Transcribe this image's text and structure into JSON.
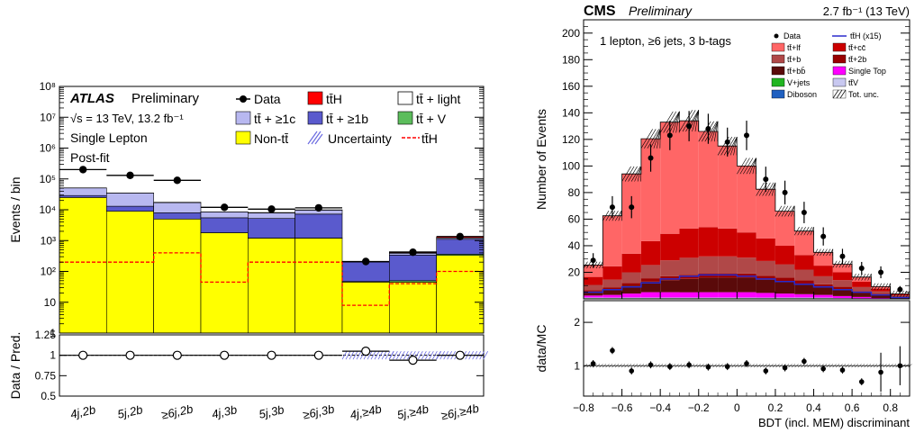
{
  "chart_data": [
    {
      "type": "bar",
      "subtype": "stacked-histogram-log",
      "ylabel": "Events / bin",
      "ratio_ylabel": "Data / Pred.",
      "ylim": [
        1,
        100000000
      ],
      "ratio_ylim": [
        0.5,
        1.25
      ],
      "y_tick_labels": [
        "1",
        "10",
        "10²",
        "10³",
        "10⁴",
        "10⁵",
        "10⁶",
        "10⁷",
        "10⁸"
      ],
      "ratio_tick_labels": [
        "1.25",
        "1",
        "0.75",
        "0.5"
      ],
      "categories": [
        "4j,2b",
        "5j,2b",
        "≥6j,2b",
        "4j,3b",
        "5j,3b",
        "≥6j,3b",
        "4j,≥4b",
        "5j,≥4b",
        "≥6j,≥4b"
      ],
      "text": {
        "experiment": "ATLAS",
        "status": "Preliminary",
        "energy": "√s = 13 TeV, 13.2 fb⁻¹",
        "channel": "Single Lepton",
        "fit": "Post-fit"
      },
      "legend": [
        "Data",
        "tt̄H",
        "tt̄ + light",
        "tt̄ + ≥1c",
        "tt̄ + ≥1b",
        "tt̄ + V",
        "Non-tt̄",
        "Uncertainty",
        "tt̄H"
      ],
      "series": [
        {
          "name": "Non-tt̄",
          "color": "#ffff00",
          "values": [
            25000,
            9000,
            5000,
            1800,
            1200,
            1200,
            45,
            45,
            330
          ]
        },
        {
          "name": "tt̄ + V",
          "color": "#5cbd5c",
          "values": [
            10,
            10,
            15,
            10,
            10,
            15,
            2,
            5,
            30
          ]
        },
        {
          "name": "tt̄ + ≥1b",
          "color": "#5a5acd",
          "values": [
            4000,
            4000,
            3000,
            3700,
            4000,
            6000,
            155,
            290,
            740
          ]
        },
        {
          "name": "tt̄ + ≥1c",
          "color": "#b8b8f0",
          "values": [
            22000,
            22000,
            9000,
            3000,
            2700,
            2500,
            1,
            50,
            120
          ]
        },
        {
          "name": "tt̄ + light",
          "color": "#ffffff",
          "values": [
            0,
            0,
            0,
            0,
            0,
            0,
            0,
            5,
            2
          ]
        },
        {
          "name": "tt̄H",
          "color": "#ff0000",
          "values": [
            200,
            200,
            400,
            45,
            200,
            200,
            8,
            40,
            100
          ]
        }
      ],
      "data": [
        200000,
        130000,
        90000,
        12000,
        10500,
        11500,
        210,
        420,
        1350
      ],
      "ratio": [
        1.0,
        1.0,
        1.0,
        1.0,
        1.0,
        1.0,
        1.05,
        0.94,
        1.0
      ],
      "tth_overlay": [
        200,
        200,
        400,
        45,
        200,
        200,
        8,
        40,
        100
      ]
    },
    {
      "type": "bar",
      "subtype": "stacked-histogram",
      "xlabel": "BDT (incl. MEM) discriminant",
      "ylabel": "Number of Events",
      "ratio_ylabel": "data/MC",
      "xlim": [
        -0.8,
        0.9
      ],
      "ylim": [
        0,
        210
      ],
      "ratio_ylim": [
        0.3,
        2.5
      ],
      "x_ticks": [
        -0.8,
        -0.6,
        -0.4,
        -0.2,
        0,
        0.2,
        0.4,
        0.6,
        0.8
      ],
      "x_tick_labels": [
        "−0.8",
        "−0.6",
        "−0.4",
        "−0.2",
        "0",
        "0.2",
        "0.4",
        "0.6",
        "0.8"
      ],
      "y_ticks": [
        20,
        40,
        60,
        80,
        100,
        120,
        140,
        160,
        180,
        200
      ],
      "y_tick_labels": [
        "20",
        "40",
        "60",
        "80",
        "100",
        "120",
        "140",
        "160",
        "180",
        "200"
      ],
      "ratio_ticks": [
        1,
        2
      ],
      "ratio_tick_labels": [
        "1",
        "2"
      ],
      "text": {
        "experiment": "CMS",
        "status": "Preliminary",
        "lumi": "2.7 fb⁻¹ (13 TeV)",
        "selection": "1 lepton, ≥6 jets, 3 b-tags"
      },
      "legend": [
        "Data",
        "tt̄H (x15)",
        "tt̄+lf",
        "tt̄+cc̄",
        "tt̄+b",
        "tt̄+2b",
        "tt̄+bb̄",
        "Single Top",
        "V+jets",
        "tt̄V",
        "Diboson",
        "Tot. unc."
      ],
      "bin_edges": [
        -0.8,
        -0.7,
        -0.6,
        -0.5,
        -0.4,
        -0.3,
        -0.2,
        -0.1,
        0,
        0.1,
        0.2,
        0.3,
        0.4,
        0.5,
        0.6,
        0.7,
        0.8,
        0.9
      ],
      "series": [
        {
          "name": "Diboson",
          "color": "#2060c0",
          "values": [
            0,
            0,
            0,
            0,
            0,
            0,
            0,
            0,
            0,
            0,
            0,
            0,
            0,
            0,
            0,
            0,
            0
          ]
        },
        {
          "name": "V+jets",
          "color": "#22b522",
          "values": [
            0.5,
            0.5,
            0.5,
            0.5,
            0.5,
            0.5,
            0.5,
            0.5,
            0.5,
            0.5,
            0.5,
            0.5,
            0.5,
            0.3,
            0.2,
            0.1,
            0
          ]
        },
        {
          "name": "tt̄V",
          "color": "#c8c8f0",
          "values": [
            0.5,
            0.5,
            0.5,
            0.5,
            0.5,
            0.5,
            0.5,
            0.5,
            0.5,
            0.5,
            0.5,
            0.5,
            0.5,
            0.3,
            0.2,
            0.1,
            0
          ]
        },
        {
          "name": "Single Top",
          "color": "#ff00ff",
          "values": [
            1.5,
            2,
            3,
            4,
            4,
            4,
            4,
            4,
            4,
            3.5,
            3,
            2.5,
            2,
            1.5,
            1,
            0.5,
            0.2
          ]
        },
        {
          "name": "tt̄+bb̄",
          "color": "#5a0a0a",
          "values": [
            3,
            4,
            6,
            8,
            9,
            10,
            11,
            11,
            11,
            10,
            9,
            8,
            6,
            5,
            3,
            2,
            1
          ]
        },
        {
          "name": "tt̄+2b",
          "color": "#990000",
          "values": [
            1,
            1.5,
            2,
            2.5,
            3,
            3,
            3,
            3,
            3,
            3,
            3,
            2.5,
            2,
            2,
            1.5,
            1,
            0.5
          ]
        },
        {
          "name": "tt̄+b",
          "color": "#b04848",
          "values": [
            4,
            6,
            8,
            10,
            12,
            13,
            13,
            13,
            12,
            11,
            10,
            8,
            6,
            5,
            3,
            2,
            1
          ]
        },
        {
          "name": "tt̄+cc̄",
          "color": "#cc0000",
          "values": [
            6,
            10,
            14,
            18,
            20,
            22,
            22,
            21,
            19,
            17,
            14,
            11,
            8,
            6,
            4,
            2,
            1
          ]
        },
        {
          "name": "tt̄+lf",
          "color": "#ff6666",
          "values": [
            9,
            38,
            60,
            77,
            84,
            81,
            72,
            62,
            50,
            37,
            26,
            18,
            10,
            6,
            3.5,
            1.5,
            0
          ]
        }
      ],
      "tth_x15": [
        5,
        7,
        9,
        12,
        15,
        17,
        18,
        18,
        17,
        15,
        13,
        11,
        9,
        7,
        5,
        3,
        1
      ],
      "data": [
        29,
        69,
        69,
        106,
        123,
        130,
        128,
        118,
        123,
        90,
        80,
        65,
        47,
        32,
        23,
        20,
        7
      ],
      "ratio": [
        1.05,
        1.35,
        0.88,
        1.02,
        0.98,
        1.02,
        0.97,
        0.98,
        1.05,
        0.88,
        0.95,
        1.1,
        0.93,
        0.9,
        0.63,
        0.85,
        1.0
      ]
    }
  ]
}
